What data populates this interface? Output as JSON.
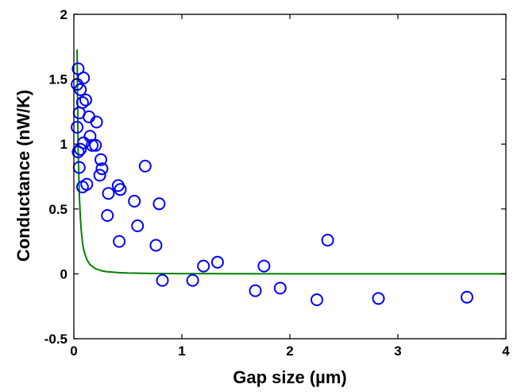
{
  "chart_data": {
    "type": "scatter",
    "title": "",
    "xlabel": "Gap size (µm)",
    "ylabel": "Conductance (nW/K)",
    "xlim": [
      0,
      4
    ],
    "ylim": [
      -0.5,
      2
    ],
    "x_ticks": [
      "0",
      "1",
      "2",
      "3",
      "4"
    ],
    "y_ticks": [
      "-0.5",
      "0",
      "0.5",
      "1",
      "1.5",
      "2"
    ],
    "grid": false,
    "legend": "none",
    "colors": {
      "points": "#0000ff",
      "curve": "#008000",
      "axes": "#000000"
    },
    "series": [
      {
        "kind": "scatter",
        "marker": "open-circle",
        "points": [
          {
            "x": 0.04,
            "y": 1.58
          },
          {
            "x": 0.03,
            "y": 1.46
          },
          {
            "x": 0.09,
            "y": 1.51
          },
          {
            "x": 0.06,
            "y": 1.42
          },
          {
            "x": 0.11,
            "y": 1.34
          },
          {
            "x": 0.08,
            "y": 1.32
          },
          {
            "x": 0.05,
            "y": 1.24
          },
          {
            "x": 0.14,
            "y": 1.21
          },
          {
            "x": 0.21,
            "y": 1.17
          },
          {
            "x": 0.03,
            "y": 1.13
          },
          {
            "x": 0.15,
            "y": 1.06
          },
          {
            "x": 0.09,
            "y": 1.01
          },
          {
            "x": 0.17,
            "y": 0.99
          },
          {
            "x": 0.2,
            "y": 0.99
          },
          {
            "x": 0.06,
            "y": 0.96
          },
          {
            "x": 0.04,
            "y": 0.94
          },
          {
            "x": 0.25,
            "y": 0.88
          },
          {
            "x": 0.05,
            "y": 0.82
          },
          {
            "x": 0.26,
            "y": 0.81
          },
          {
            "x": 0.66,
            "y": 0.83
          },
          {
            "x": 0.24,
            "y": 0.76
          },
          {
            "x": 0.12,
            "y": 0.69
          },
          {
            "x": 0.08,
            "y": 0.67
          },
          {
            "x": 0.41,
            "y": 0.68
          },
          {
            "x": 0.43,
            "y": 0.65
          },
          {
            "x": 0.32,
            "y": 0.62
          },
          {
            "x": 0.56,
            "y": 0.56
          },
          {
            "x": 0.79,
            "y": 0.54
          },
          {
            "x": 0.31,
            "y": 0.45
          },
          {
            "x": 0.59,
            "y": 0.37
          },
          {
            "x": 0.42,
            "y": 0.25
          },
          {
            "x": 0.76,
            "y": 0.22
          },
          {
            "x": 2.35,
            "y": 0.26
          },
          {
            "x": 1.2,
            "y": 0.06
          },
          {
            "x": 1.33,
            "y": 0.09
          },
          {
            "x": 1.76,
            "y": 0.06
          },
          {
            "x": 0.82,
            "y": -0.05
          },
          {
            "x": 1.1,
            "y": -0.05
          },
          {
            "x": 1.68,
            "y": -0.13
          },
          {
            "x": 1.91,
            "y": -0.11
          },
          {
            "x": 2.25,
            "y": -0.2
          },
          {
            "x": 2.82,
            "y": -0.19
          },
          {
            "x": 3.64,
            "y": -0.18
          }
        ]
      },
      {
        "kind": "line",
        "function": "inverse-square",
        "x": [
          0.03,
          0.035,
          0.04,
          0.05,
          0.06,
          0.07,
          0.08,
          0.09,
          0.1,
          0.12,
          0.15,
          0.2,
          0.25,
          0.3,
          0.4,
          0.5,
          0.7,
          1,
          1.5,
          2,
          3,
          4
        ],
        "y": [
          1.73,
          1.27,
          0.97,
          0.62,
          0.43,
          0.32,
          0.24,
          0.19,
          0.16,
          0.11,
          0.07,
          0.04,
          0.025,
          0.017,
          0.01,
          0.006,
          0.003,
          0.002,
          0.001,
          0.0,
          0.0,
          0.0
        ]
      }
    ]
  }
}
